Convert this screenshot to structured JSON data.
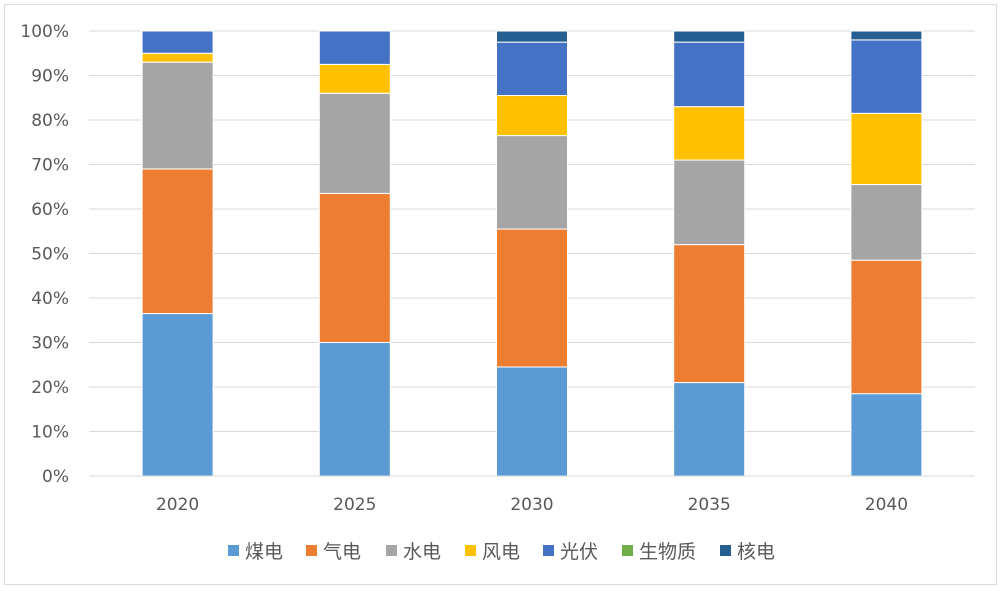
{
  "chart_data": {
    "type": "bar",
    "stacked": true,
    "normalized": true,
    "categories": [
      "2020",
      "2025",
      "2030",
      "2035",
      "2040"
    ],
    "y_ticks": [
      "0%",
      "10%",
      "20%",
      "30%",
      "40%",
      "50%",
      "60%",
      "70%",
      "80%",
      "90%",
      "100%"
    ],
    "ylim": [
      0,
      100
    ],
    "grid": true,
    "legend_position": "bottom",
    "series": [
      {
        "name": "煤电",
        "color": "#5b9bd5",
        "values": [
          36.5,
          30.0,
          24.5,
          21.0,
          18.5
        ]
      },
      {
        "name": "气电",
        "color": "#ed7d31",
        "values": [
          32.5,
          33.5,
          31.0,
          31.0,
          30.0
        ]
      },
      {
        "name": "水电",
        "color": "#a5a5a5",
        "values": [
          24.0,
          22.5,
          21.0,
          19.0,
          17.0
        ]
      },
      {
        "name": "风电",
        "color": "#ffc000",
        "values": [
          2.0,
          6.5,
          9.0,
          12.0,
          16.0
        ]
      },
      {
        "name": "光伏",
        "color": "#4472c4",
        "values": [
          5.0,
          7.5,
          12.0,
          14.5,
          16.5
        ]
      },
      {
        "name": "生物质",
        "color": "#70ad47",
        "values": [
          0.0,
          0.0,
          0.0,
          0.0,
          0.0
        ]
      },
      {
        "name": "核电",
        "color": "#255e91",
        "values": [
          0.0,
          0.0,
          2.5,
          2.5,
          2.0
        ]
      }
    ]
  }
}
